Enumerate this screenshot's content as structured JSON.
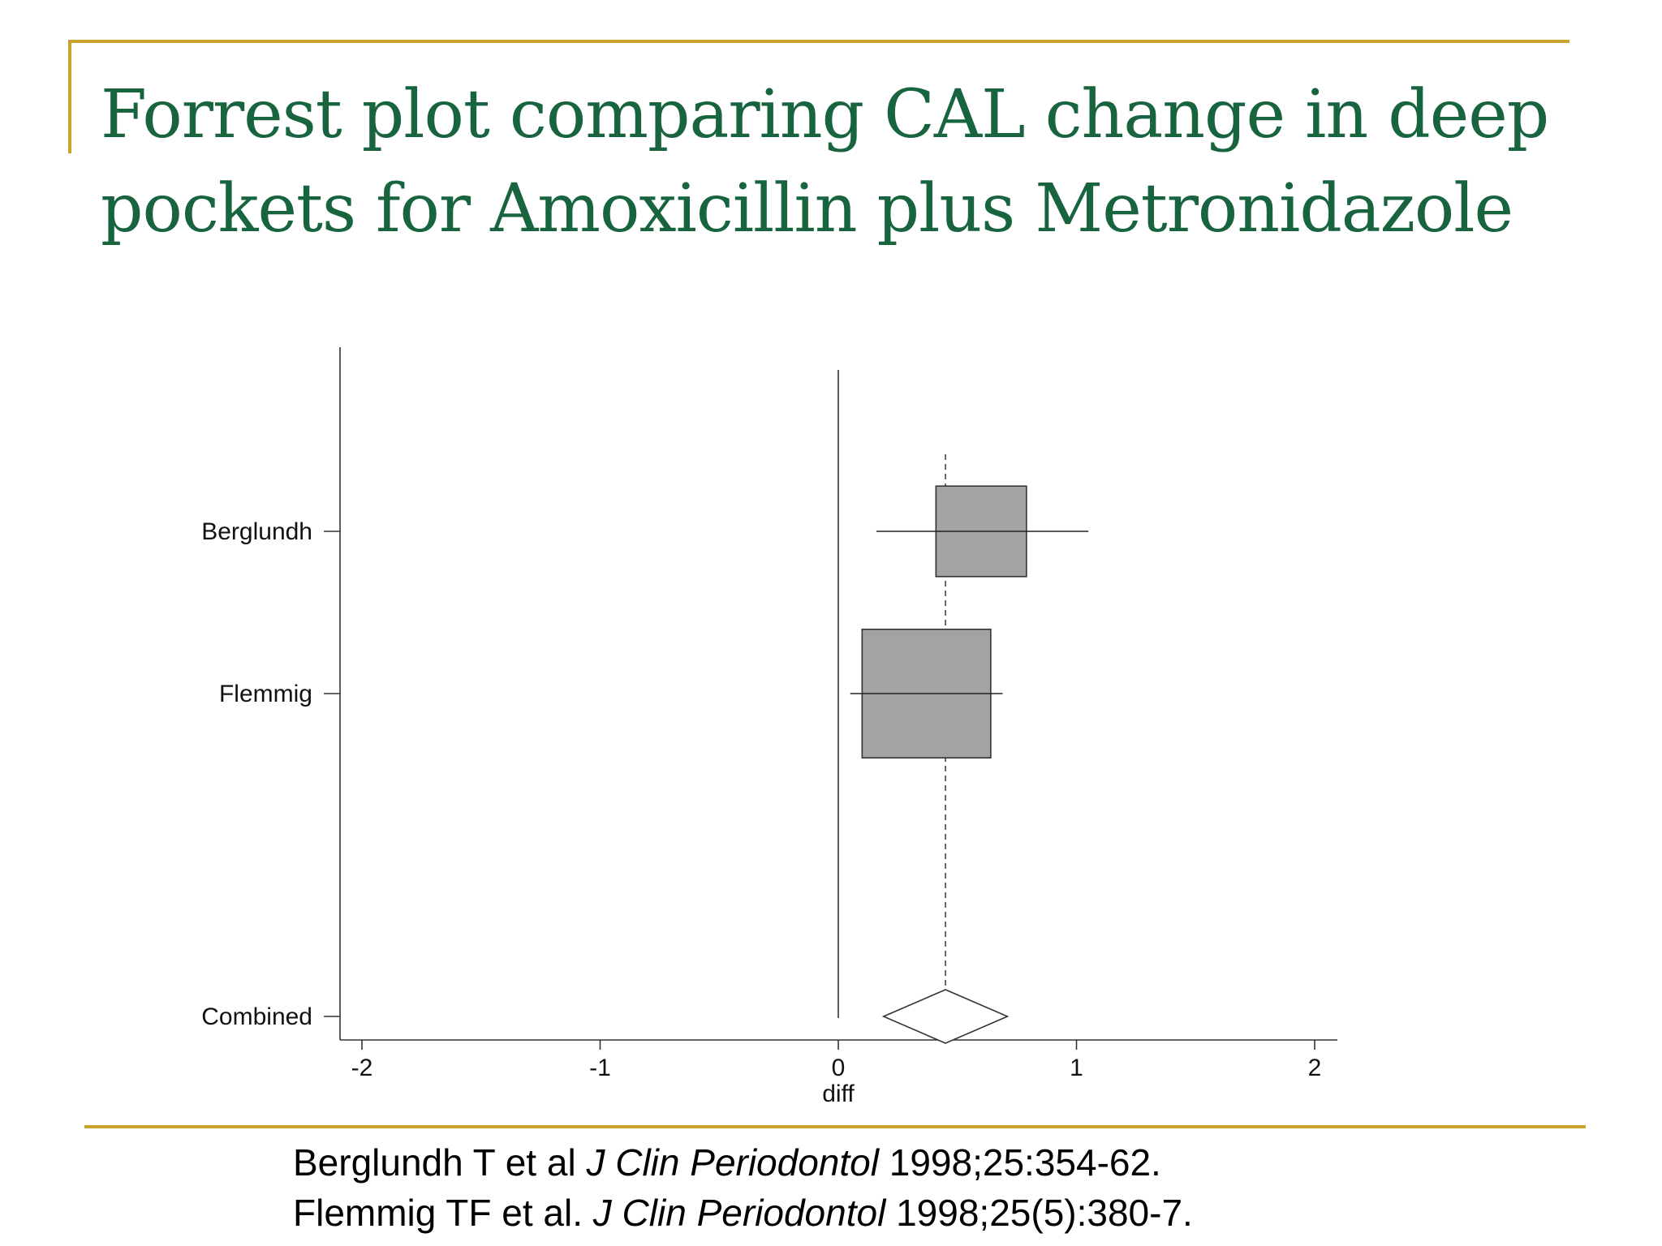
{
  "slide": {
    "title_line1": "Forrest plot comparing CAL change in deep",
    "title_line2": "pockets for Amoxicillin plus Metronidazole",
    "accent_color": "#C9A22E",
    "title_color": "#17643F"
  },
  "chart_data": {
    "type": "forest",
    "xlabel": "diff",
    "xlim": [
      -2,
      2
    ],
    "xticks": [
      "-2",
      "-1",
      "0",
      "1",
      "2"
    ],
    "null_line": 0,
    "pooled_reference_line": 0.45,
    "studies": [
      {
        "label": "Berglundh",
        "estimate": 0.45,
        "ci_low": 0.16,
        "ci_high": 1.05,
        "box_low": 0.41,
        "box_high": 0.79
      },
      {
        "label": "Flemmig",
        "estimate": 0.45,
        "ci_low": 0.05,
        "ci_high": 0.69,
        "box_low": 0.1,
        "box_high": 0.64
      }
    ],
    "combined": {
      "label": "Combined",
      "estimate": 0.45,
      "ci_low": 0.19,
      "ci_high": 0.71
    },
    "box_color": "#A3A2A5",
    "grid": false
  },
  "references": [
    {
      "author": "Berglundh T et al ",
      "journal": "J Clin Periodontol",
      "citation": " 1998;25:354-62."
    },
    {
      "author": "Flemmig TF et al. ",
      "journal": "J Clin Periodontol",
      "citation": " 1998;25(5):380-7."
    }
  ]
}
